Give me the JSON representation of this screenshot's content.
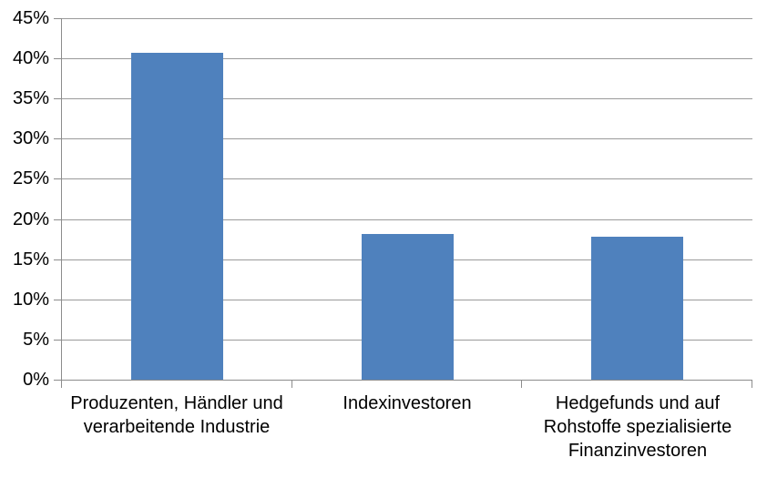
{
  "chart_data": {
    "type": "bar",
    "title": "",
    "xlabel": "",
    "ylabel": "",
    "categories": [
      "Produzenten, Händler und verarbeitende Industrie",
      "Indexinvestoren",
      "Hedgefunds und auf Rohstoffe spezialisierte Finanzinvestoren"
    ],
    "category_lines": [
      [
        "Produzenten, Händler und",
        "verarbeitende Industrie"
      ],
      [
        "Indexinvestoren"
      ],
      [
        "Hedgefunds und auf",
        "Rohstoffe spezialisierte",
        "Finanzinvestoren"
      ]
    ],
    "values": [
      40.7,
      18.1,
      17.8
    ],
    "ylim": [
      0,
      45
    ],
    "ytick_step": 5,
    "ytick_labels": [
      "0%",
      "5%",
      "10%",
      "15%",
      "20%",
      "25%",
      "30%",
      "35%",
      "40%",
      "45%"
    ],
    "grid": true,
    "legend": false,
    "colors": {
      "bar": "#4F81BD",
      "gridline": "#9A9A9A",
      "axis": "#8C8C8C",
      "text": "#000000",
      "background": "#FFFFFF"
    }
  }
}
